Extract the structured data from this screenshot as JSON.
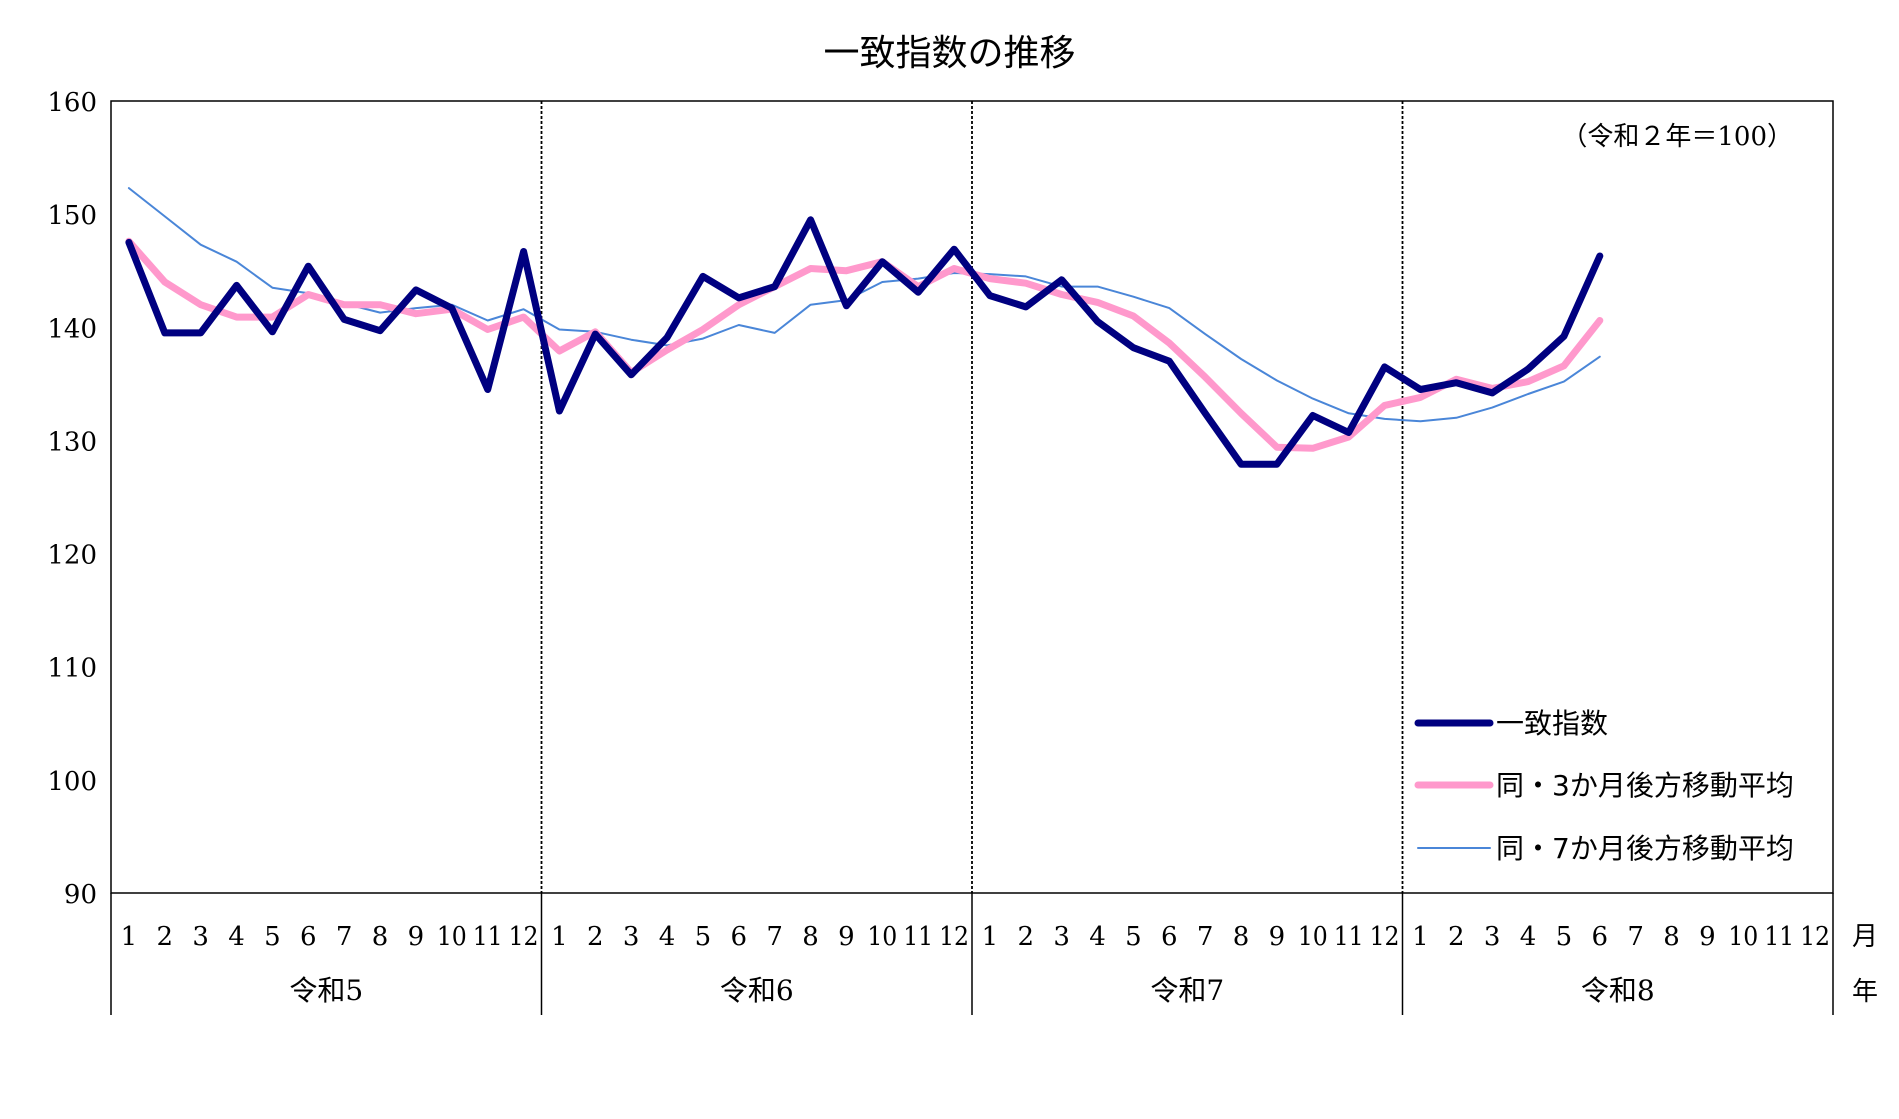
{
  "chart_data": {
    "type": "line",
    "title": "一致指数の推移",
    "note": "（令和２年＝100）",
    "ylim": [
      90,
      160
    ],
    "y_ticks": [
      "160",
      "150",
      "140",
      "130",
      "120",
      "110",
      "100",
      "90"
    ],
    "month_labels": [
      "1",
      "2",
      "3",
      "4",
      "5",
      "6",
      "7",
      "8",
      "9",
      "10",
      "11",
      "12"
    ],
    "years": [
      "令和5",
      "令和6",
      "令和7",
      "令和8"
    ],
    "month_unit_label": "月",
    "year_unit_label": "年",
    "legend_position": "bottom-right",
    "grid": false,
    "series": [
      {
        "name": "一致指数",
        "color": "#000080",
        "width": 7,
        "start_index": 0,
        "values": [
          147.5,
          139.5,
          139.5,
          143.7,
          139.6,
          145.4,
          140.7,
          139.7,
          143.3,
          141.7,
          134.5,
          146.7,
          132.6,
          139.4,
          135.8,
          139.1,
          144.5,
          142.6,
          143.6,
          149.5,
          141.9,
          145.8,
          143.1,
          146.9,
          142.8,
          141.8,
          144.2,
          140.5,
          138.2,
          137.0,
          132.4,
          127.9,
          127.9,
          132.2,
          130.7,
          136.5,
          134.5,
          135.1,
          134.2,
          136.3,
          139.2,
          146.3
        ]
      },
      {
        "name": "同・3か月後方移動平均",
        "color": "#ff99cc",
        "width": 7,
        "start_index": 0,
        "values": [
          147.6,
          144.0,
          142.0,
          140.9,
          140.9,
          142.9,
          142.0,
          142.0,
          141.2,
          141.6,
          139.8,
          140.9,
          137.9,
          139.6,
          136.0,
          138.0,
          139.8,
          142.0,
          143.6,
          145.2,
          145.0,
          145.8,
          143.6,
          145.2,
          144.3,
          143.9,
          142.9,
          142.2,
          141.0,
          138.6,
          135.6,
          132.4,
          129.4,
          129.3,
          130.3,
          133.1,
          133.8,
          135.4,
          134.6,
          135.2,
          136.6,
          140.6
        ]
      },
      {
        "name": "同・7か月後方移動平均",
        "color": "#4a86d8",
        "width": 2,
        "start_index": 0,
        "values": [
          152.3,
          149.8,
          147.3,
          145.8,
          143.5,
          143.0,
          142.1,
          141.3,
          141.7,
          142.0,
          140.6,
          141.6,
          139.8,
          139.6,
          138.9,
          138.4,
          139.0,
          140.2,
          139.5,
          142.0,
          142.4,
          144.0,
          144.3,
          144.8,
          144.7,
          144.5,
          143.6,
          143.6,
          142.7,
          141.7,
          139.4,
          137.2,
          135.3,
          133.7,
          132.4,
          131.9,
          131.7,
          132.0,
          132.9,
          134.1,
          135.2,
          137.4
        ]
      }
    ]
  }
}
